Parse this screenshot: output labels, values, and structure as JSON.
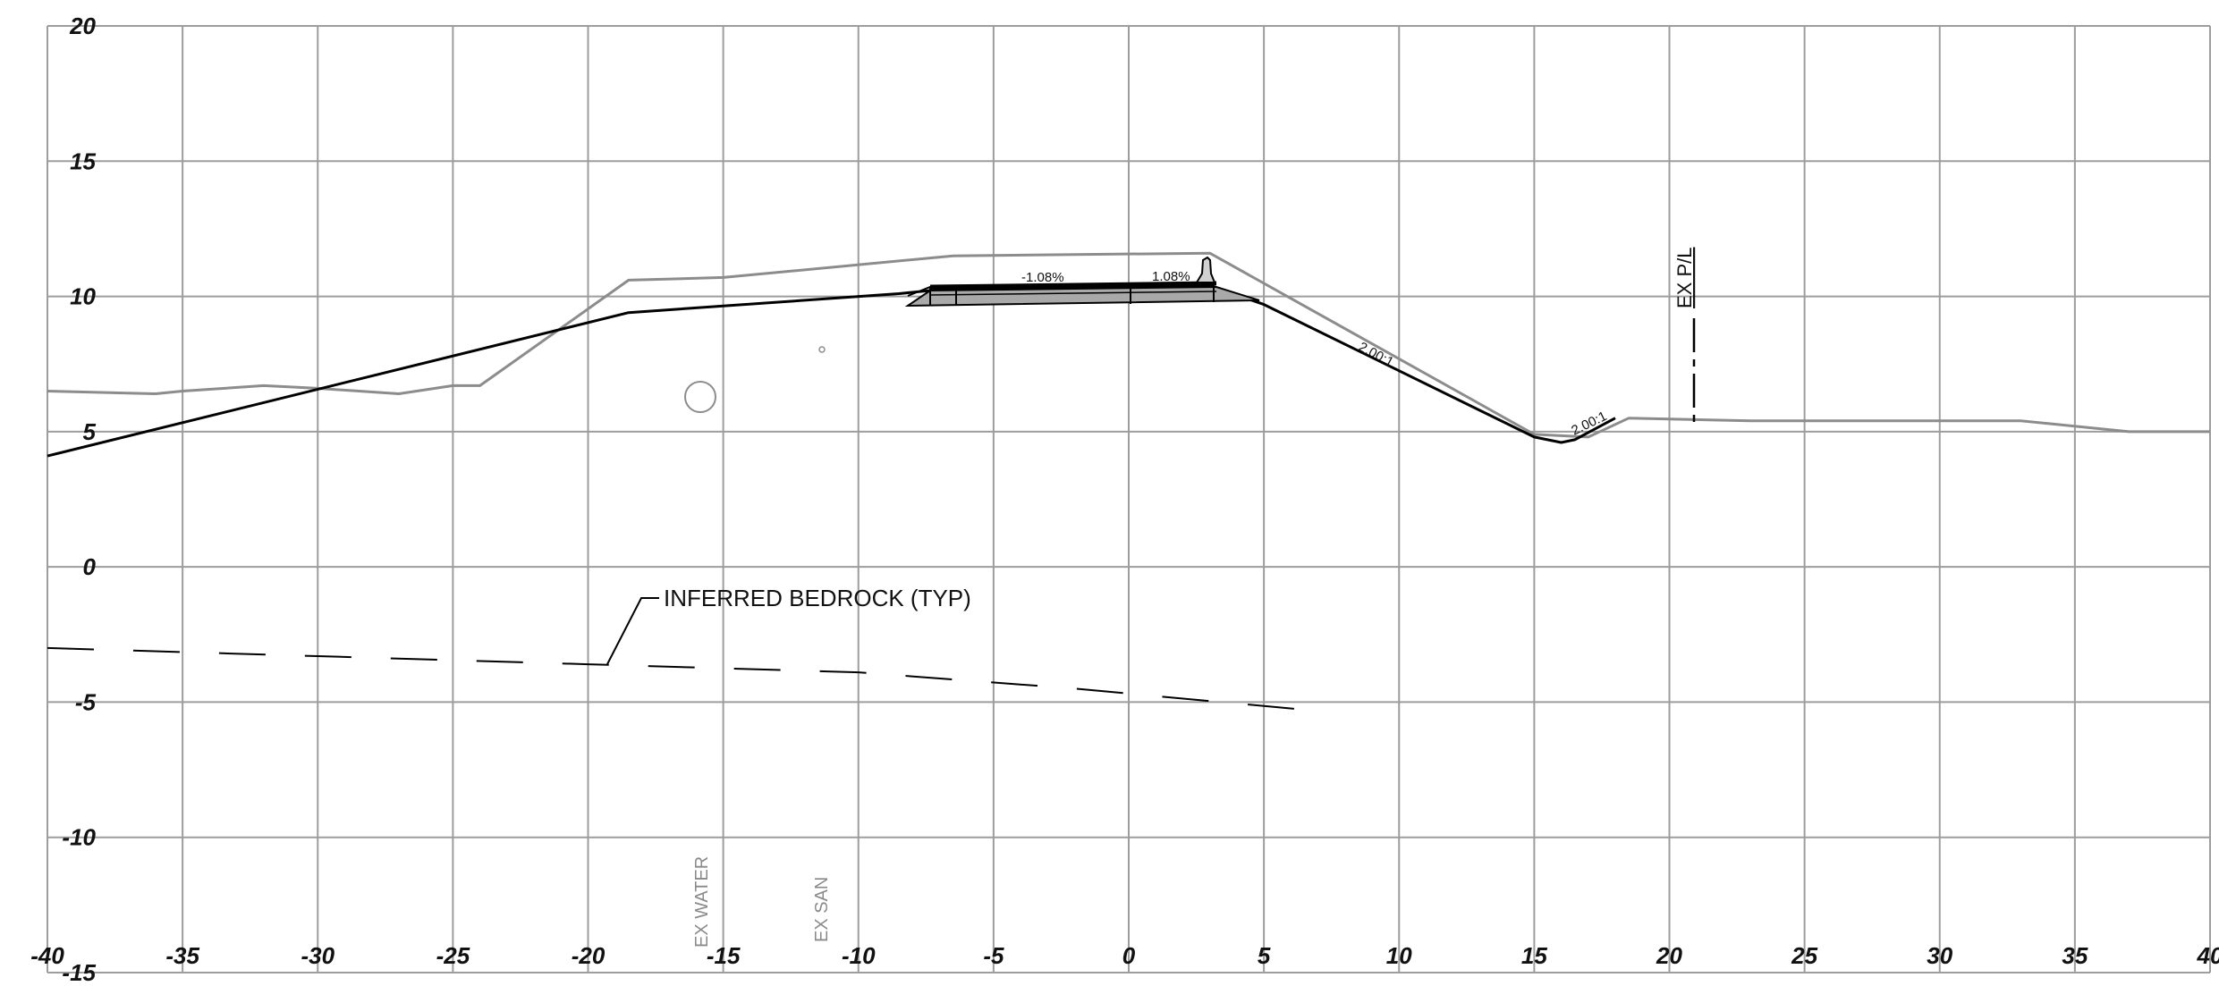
{
  "chart_data": {
    "type": "line",
    "x_ticks": [
      "-40",
      "-35",
      "-30",
      "-25",
      "-20",
      "-15",
      "-10",
      "-5",
      "0",
      "5",
      "10",
      "15",
      "20",
      "25",
      "30",
      "35",
      "40"
    ],
    "y_ticks": [
      "20",
      "15",
      "10",
      "5",
      "0",
      "-5",
      "-10",
      "-15"
    ],
    "xlim": [
      -40,
      40
    ],
    "ylim": [
      -15,
      20
    ],
    "grid": true,
    "series": [
      {
        "role": "existing-ground",
        "color": "#8c8c8c",
        "x": [
          -40,
          -36,
          -35,
          -32,
          -30,
          -27,
          -25,
          -24,
          -18.5,
          -15,
          -6.5,
          3,
          15,
          17,
          18.5,
          23,
          33,
          34,
          37,
          40
        ],
        "y": [
          6.5,
          6.4,
          6.5,
          6.7,
          6.6,
          6.4,
          6.7,
          6.7,
          10.6,
          10.7,
          11.5,
          11.6,
          4.9,
          4.8,
          5.5,
          5.4,
          5.4,
          5.3,
          5.0,
          5.0
        ]
      },
      {
        "role": "proposed-grade",
        "color": "#000000",
        "x": [
          -40,
          -18.5,
          -8.5,
          -6.5,
          3,
          5,
          15,
          16,
          16.5,
          18
        ],
        "y": [
          4.1,
          9.4,
          10.1,
          10.3,
          10.4,
          9.7,
          4.8,
          4.6,
          4.7,
          5.5
        ]
      },
      {
        "role": "inferred-bedrock",
        "color": "#000000",
        "x": [
          -40,
          -30,
          -20,
          -10,
          -2,
          6.7
        ],
        "y": [
          -3.0,
          -3.3,
          -3.6,
          -3.9,
          -4.5,
          -5.3
        ]
      }
    ],
    "annotations": {
      "slope_left": "-1.08%",
      "slope_right": "1.08%",
      "side_slope_1": "2.00:1",
      "side_slope_2": "2.00:1",
      "property_line": "EX P/L",
      "bedrock_callout": "INFERRED BEDROCK (TYP)",
      "utility_water": "EX WATER",
      "utility_sanitary": "EX SAN"
    }
  }
}
